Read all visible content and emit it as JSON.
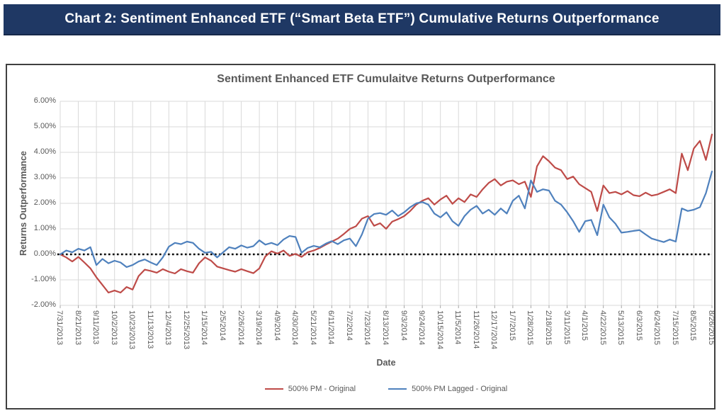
{
  "banner": {
    "title": "Chart 2: Sentiment Enhanced ETF (“Smart Beta ETF”) Cumulative Returns Outperformance",
    "bg_color": "#1F3864",
    "text_color": "#FFFFFF"
  },
  "chart_data": {
    "type": "line",
    "title": "Sentiment Enhanced ETF Cumulaitve Returns Outperformance",
    "xlabel": "Date",
    "ylabel": "Returns Outperformance",
    "ylim": [
      -2,
      6
    ],
    "y_ticks": [
      "6.00%",
      "5.00%",
      "4.00%",
      "3.00%",
      "2.00%",
      "1.00%",
      "0.00%",
      "-1.00%",
      "-2.00%"
    ],
    "x_tick_labels": [
      "7/31/2013",
      "8/21/2013",
      "9/11/2013",
      "10/2/2013",
      "10/23/2013",
      "11/13/2013",
      "12/4/2013",
      "12/25/2013",
      "1/15/2014",
      "2/5/2014",
      "2/26/2014",
      "3/19/2014",
      "4/9/2014",
      "4/30/2014",
      "5/21/2014",
      "6/11/2014",
      "7/2/2014",
      "7/23/2014",
      "8/13/2014",
      "9/3/2014",
      "9/24/2014",
      "10/15/2014",
      "11/5/2014",
      "11/26/2014",
      "12/17/2014",
      "1/7/2015",
      "1/28/2015",
      "2/18/2015",
      "3/11/2015",
      "4/1/2015",
      "4/22/2015",
      "5/13/2015",
      "6/3/2015",
      "6/24/2015",
      "7/15/2015",
      "8/5/2015",
      "8/26/2015"
    ],
    "points_per_tick_interval": 3,
    "sampling_note": "values sampled weekly, estimated from plot; units are percent",
    "grid": true,
    "grid_color": "#D9D9D9",
    "zero_line": {
      "value": 0,
      "style": "dotted",
      "color": "#000000"
    },
    "legend_position": "bottom",
    "series": [
      {
        "name": "500% PM - Original",
        "color": "#BE4B48",
        "values": [
          0.0,
          -0.12,
          -0.28,
          -0.1,
          -0.32,
          -0.55,
          -0.9,
          -1.2,
          -1.5,
          -1.42,
          -1.5,
          -1.28,
          -1.38,
          -0.85,
          -0.6,
          -0.65,
          -0.72,
          -0.58,
          -0.68,
          -0.75,
          -0.58,
          -0.66,
          -0.72,
          -0.35,
          -0.12,
          -0.25,
          -0.48,
          -0.55,
          -0.62,
          -0.68,
          -0.58,
          -0.66,
          -0.74,
          -0.55,
          -0.08,
          0.12,
          0.03,
          0.15,
          -0.06,
          0.02,
          -0.1,
          0.08,
          0.15,
          0.25,
          0.38,
          0.5,
          0.62,
          0.8,
          1.0,
          1.1,
          1.4,
          1.5,
          1.12,
          1.22,
          1.0,
          1.28,
          1.38,
          1.5,
          1.7,
          1.95,
          2.1,
          2.2,
          1.95,
          2.15,
          2.3,
          1.98,
          2.2,
          2.05,
          2.35,
          2.25,
          2.55,
          2.8,
          2.95,
          2.7,
          2.85,
          2.9,
          2.75,
          2.85,
          2.25,
          3.45,
          3.85,
          3.65,
          3.4,
          3.3,
          2.95,
          3.05,
          2.75,
          2.6,
          2.45,
          1.7,
          2.7,
          2.4,
          2.45,
          2.35,
          2.48,
          2.32,
          2.28,
          2.42,
          2.3,
          2.35,
          2.45,
          2.55,
          2.4,
          3.95,
          3.3,
          4.15,
          4.45,
          3.7,
          4.7
        ]
      },
      {
        "name": "500% PM Lagged - Original",
        "color": "#4F81BD",
        "values": [
          0.0,
          0.15,
          0.08,
          0.22,
          0.15,
          0.28,
          -0.42,
          -0.18,
          -0.35,
          -0.25,
          -0.32,
          -0.5,
          -0.42,
          -0.28,
          -0.2,
          -0.32,
          -0.42,
          -0.12,
          0.3,
          0.45,
          0.4,
          0.5,
          0.45,
          0.22,
          0.06,
          0.1,
          -0.12,
          0.08,
          0.28,
          0.22,
          0.35,
          0.26,
          0.32,
          0.55,
          0.38,
          0.45,
          0.36,
          0.58,
          0.72,
          0.68,
          0.06,
          0.25,
          0.33,
          0.28,
          0.42,
          0.52,
          0.4,
          0.55,
          0.62,
          0.32,
          0.78,
          1.4,
          1.58,
          1.62,
          1.55,
          1.72,
          1.5,
          1.65,
          1.85,
          2.0,
          2.05,
          1.95,
          1.6,
          1.45,
          1.65,
          1.3,
          1.12,
          1.5,
          1.75,
          1.9,
          1.6,
          1.75,
          1.55,
          1.8,
          1.6,
          2.1,
          2.3,
          1.8,
          2.9,
          2.45,
          2.55,
          2.5,
          2.1,
          1.95,
          1.65,
          1.3,
          0.88,
          1.3,
          1.35,
          0.75,
          1.95,
          1.45,
          1.2,
          0.85,
          0.88,
          0.92,
          0.95,
          0.78,
          0.62,
          0.55,
          0.48,
          0.58,
          0.5,
          1.8,
          1.7,
          1.75,
          1.85,
          2.4,
          3.25
        ]
      }
    ]
  }
}
